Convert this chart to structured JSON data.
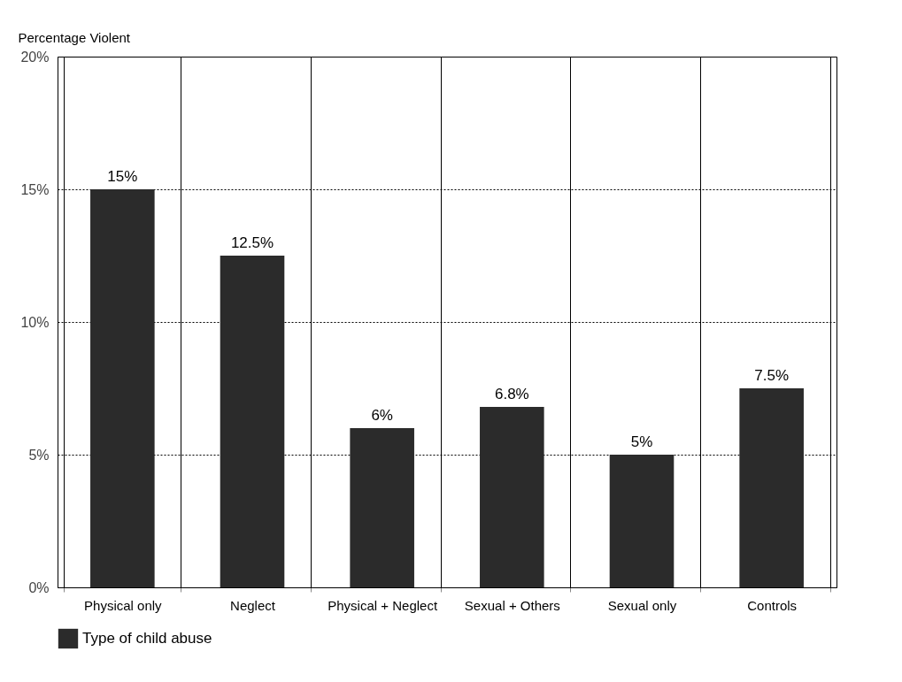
{
  "chart_data": {
    "type": "bar",
    "ylabel": "Percentage Violent",
    "categories": [
      "Physical only",
      "Neglect",
      "Physical + Neglect",
      "Sexual + Others",
      "Sexual only",
      "Controls"
    ],
    "series": [
      {
        "name": "Type of child abuse",
        "color": "#2b2b2b",
        "values": [
          15,
          12.5,
          6,
          6.8,
          5,
          7.5
        ],
        "value_labels": [
          "15%",
          "12.5%",
          "6%",
          "6.8%",
          "5%",
          "7.5%"
        ]
      }
    ],
    "ylim": [
      0,
      20
    ],
    "yticks": [
      {
        "value": 0,
        "label": "0%"
      },
      {
        "value": 5,
        "label": "5%"
      },
      {
        "value": 10,
        "label": "10%"
      },
      {
        "value": 15,
        "label": "15%"
      },
      {
        "value": 20,
        "label": "20%"
      }
    ],
    "grid": true,
    "legend": "bottom"
  }
}
